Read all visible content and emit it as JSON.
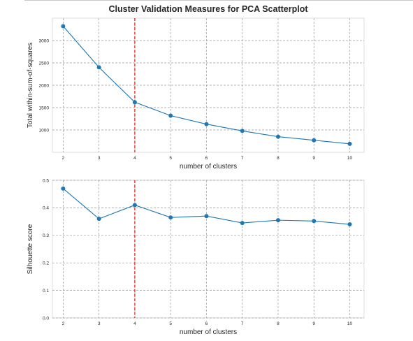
{
  "chart_data": [
    {
      "type": "line",
      "title": "Cluster Validation Measures for PCA Scatterplot",
      "xlabel": "number of clusters",
      "ylabel": "Total within-sum-of-squares",
      "x": [
        2,
        3,
        4,
        5,
        6,
        7,
        8,
        9,
        10
      ],
      "series": [
        {
          "values": [
            3320,
            2400,
            1620,
            1320,
            1130,
            980,
            850,
            770,
            690
          ]
        }
      ],
      "xlim": [
        1.7,
        10.4
      ],
      "ylim": [
        500,
        3500
      ],
      "xticks": [
        "2",
        "3",
        "4",
        "5",
        "6",
        "7",
        "8",
        "9",
        "10"
      ],
      "yticks": [
        1000,
        1500,
        2000,
        2500,
        3000
      ],
      "reference_line_x": 4,
      "grid": true,
      "colors": {
        "series": "#1f77b4",
        "reference": "#e8231a"
      }
    },
    {
      "type": "line",
      "xlabel": "number of clusters",
      "ylabel": "Silhouette score",
      "x": [
        2,
        3,
        4,
        5,
        6,
        7,
        8,
        9,
        10
      ],
      "series": [
        {
          "values": [
            0.47,
            0.36,
            0.41,
            0.365,
            0.37,
            0.345,
            0.355,
            0.352,
            0.34
          ]
        }
      ],
      "xlim": [
        1.7,
        10.4
      ],
      "ylim": [
        0.0,
        0.5
      ],
      "xticks": [
        "2",
        "3",
        "4",
        "5",
        "6",
        "7",
        "8",
        "9",
        "10"
      ],
      "yticks": [
        "0.0",
        "0.1",
        "0.2",
        "0.3",
        "0.4",
        "0.5"
      ],
      "reference_line_x": 4,
      "grid": true,
      "colors": {
        "series": "#1f77b4",
        "reference": "#e8231a"
      }
    }
  ]
}
